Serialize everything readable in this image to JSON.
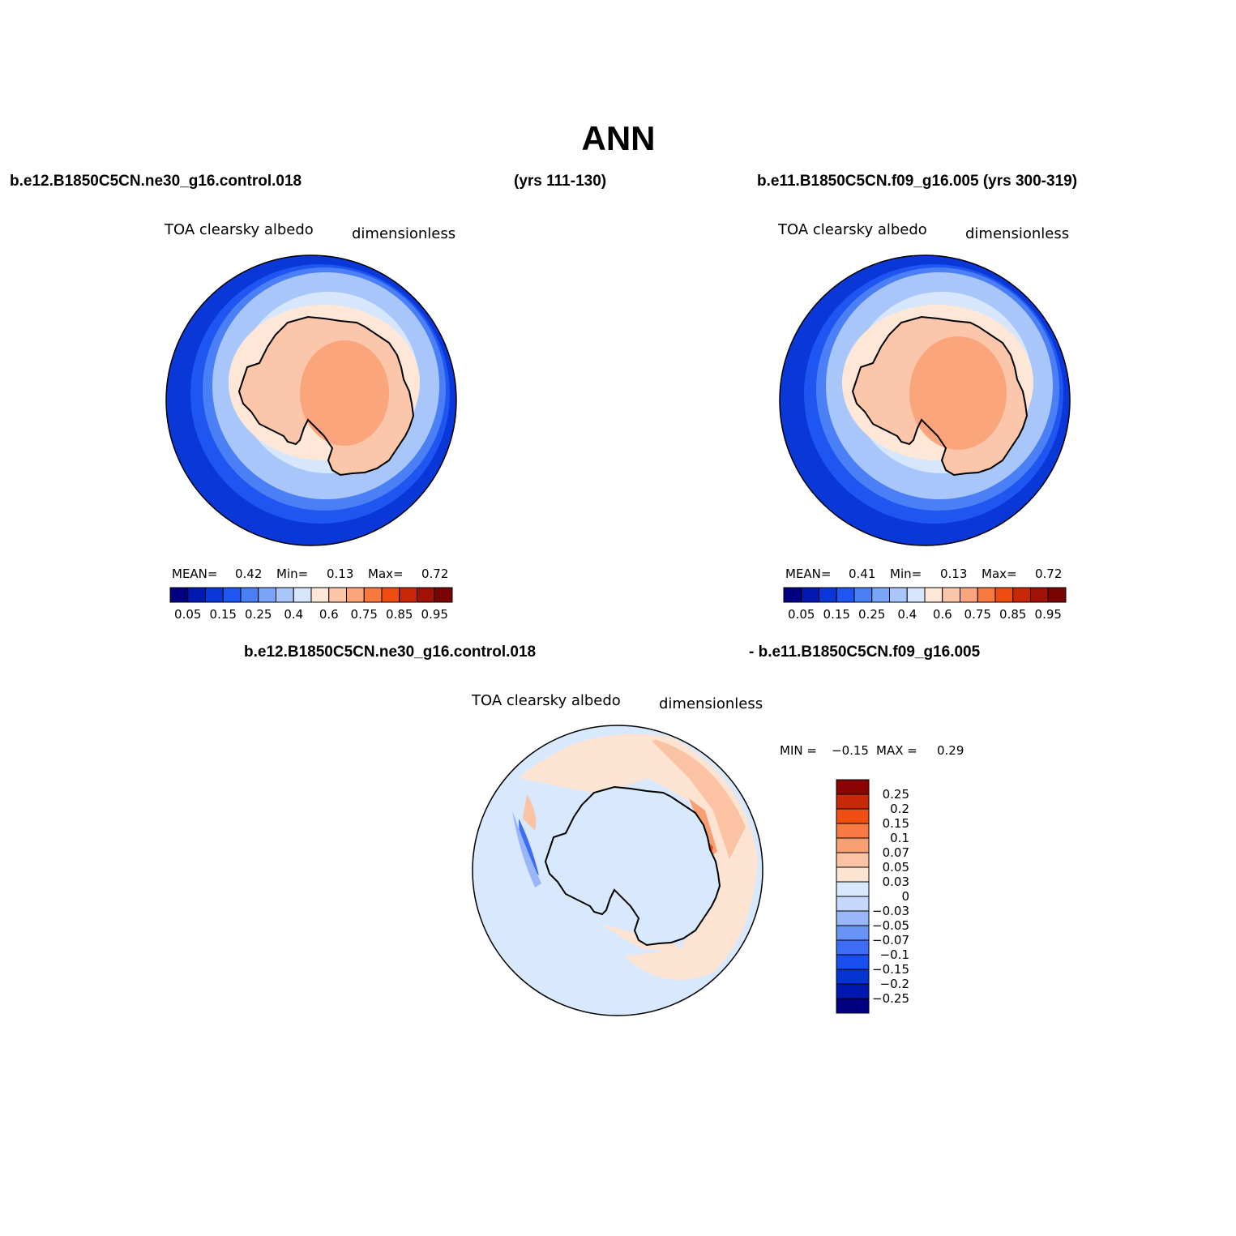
{
  "figure": {
    "title": "ANN",
    "top_left_case": "b.e12.B1850C5CN.ne30_g16.control.018",
    "top_left_years": "(yrs 111-130)",
    "top_right_case": "b.e11.B1850C5CN.f09_g16.005 (yrs 300-319)",
    "diff_case_left": "b.e12.B1850C5CN.ne30_g16.control.018",
    "diff_case_right": "- b.e11.B1850C5CN.f09_g16.005"
  },
  "panels": [
    {
      "variable": "TOA clearsky albedo",
      "units": "dimensionless",
      "mean_label": "MEAN=",
      "mean": "0.42",
      "min_label": "Min=",
      "min": "0.13",
      "max_label": "Max=",
      "max": "0.72"
    },
    {
      "variable": "TOA clearsky albedo",
      "units": "dimensionless",
      "mean_label": "MEAN=",
      "mean": "0.41",
      "min_label": "Min=",
      "min": "0.13",
      "max_label": "Max=",
      "max": "0.72"
    },
    {
      "variable": "TOA clearsky albedo",
      "units": "dimensionless",
      "min_label": "MIN =",
      "min": "−0.15",
      "max_label": "MAX =",
      "max": "0.29"
    }
  ],
  "colorbar_main": {
    "colors": [
      "#000080",
      "#0019b3",
      "#0a37d8",
      "#1f55f0",
      "#4a7ff5",
      "#7aa4f7",
      "#a9c6fa",
      "#d6e6fd",
      "#fee7d7",
      "#fcc6ab",
      "#fba57c",
      "#f8793f",
      "#ef4c12",
      "#c82808",
      "#a01205",
      "#7a0303"
    ],
    "tick_labels": [
      "0.05",
      "0.15",
      "0.25",
      "0.4",
      "0.6",
      "0.75",
      "0.85",
      "0.95"
    ]
  },
  "colorbar_diff": {
    "colors": [
      "#000080",
      "#0018b0",
      "#0533d4",
      "#1a4fef",
      "#3f6cf5",
      "#6893f6",
      "#98b6f8",
      "#c5d8fb",
      "#d8e8fd",
      "#fde3d2",
      "#fbc2a4",
      "#f99f74",
      "#f77a42",
      "#f04e12",
      "#c92808",
      "#8b0303"
    ],
    "tick_labels": [
      "0.25",
      "0.2",
      "0.15",
      "0.1",
      "0.07",
      "0.05",
      "0.03",
      "0",
      "−0.03",
      "−0.05",
      "−0.07",
      "−0.1",
      "−0.15",
      "−0.2",
      "−0.25"
    ]
  },
  "map_colors": {
    "ring1": "#0a37d8",
    "ring2": "#1f55f0",
    "ring3": "#4a7ff5",
    "ring4": "#a9c6fa",
    "ring5": "#d6e6fd",
    "sea_ice": "#fee7d7",
    "land": "#fcc6ab",
    "plateau": "#fba57c",
    "diff_bg": "#d8e8fd",
    "diff_pos1": "#fde3d2",
    "diff_pos2": "#fbc2a4",
    "diff_pos3": "#f99f74",
    "diff_pos4": "#f04e12",
    "diff_neg1": "#98b6f8",
    "diff_neg2": "#3f6cf5"
  }
}
